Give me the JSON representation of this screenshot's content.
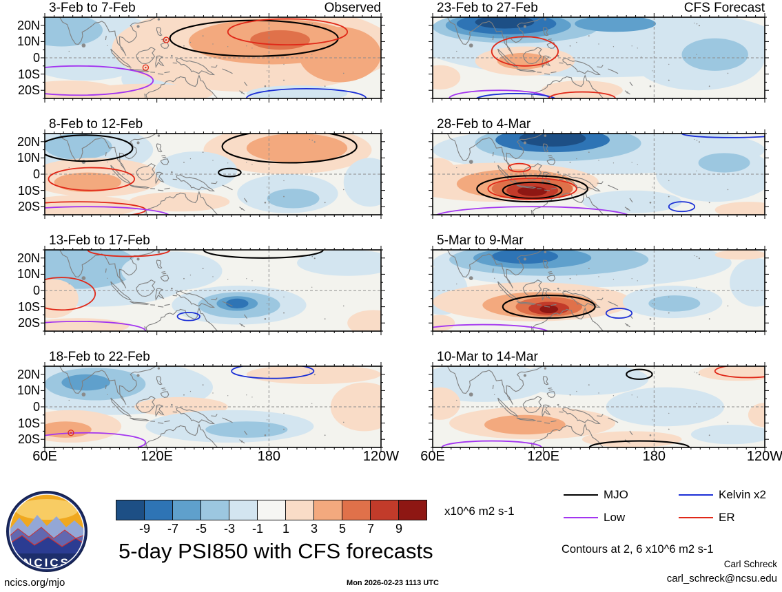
{
  "title": "5-day PSI850 with CFS forecasts",
  "logo": {
    "text": "NCICS"
  },
  "colorbar": {
    "units": "x10^6 m2 s-1"
  },
  "legend": {
    "items": [
      {
        "label": "MJO",
        "color": "#000000"
      },
      {
        "label": "Kelvin x2",
        "color": "#1b2fd6"
      },
      {
        "label": "Low",
        "color": "#a335f0"
      },
      {
        "label": "ER",
        "color": "#e02818"
      }
    ]
  },
  "notes": {
    "contours": "Contours at 2, 6 x10^6 m2 s-1",
    "credit_name": "Carl Schreck",
    "credit_email": "carl_schreck@ncsu.edu",
    "site": "ncics.org/mjo",
    "timestamp": "Mon 2026-02-23 1113 UTC"
  },
  "chart_data": {
    "type": "heatmap",
    "variable": "PSI850 anomaly (5-day mean streamfunction at 850 hPa)",
    "units": "x10^6 m2 s-1",
    "lon_range_deg_east": [
      60,
      240
    ],
    "lat_range_deg": [
      -25,
      25
    ],
    "x_ticks": [
      "60E",
      "120E",
      "180",
      "120W"
    ],
    "y_ticks": [
      "20N",
      "10N",
      "0",
      "10S",
      "20S"
    ],
    "levels": [
      -9,
      -7,
      -5,
      -3,
      -1,
      1,
      3,
      5,
      7,
      9
    ],
    "colors": [
      "#1d4f85",
      "#2e74b5",
      "#5fa0cc",
      "#9cc7e0",
      "#d3e5f0",
      "#f6f6f3",
      "#f9dcc7",
      "#f3a97e",
      "#e0714a",
      "#c23b2a",
      "#8e1713"
    ],
    "panel_bg": "#f3f3ee",
    "left_column_label": "Observed",
    "right_column_label": "CFS Forecast",
    "anomaly_format": "[lon_deg_east, lat_deg, lon_radius_deg, lat_radius_deg, anomaly_value_x10^6_m2s]",
    "contour_format": "[wave_type, lon_deg_east, lat_deg, lon_radius_deg, lat_radius_deg]",
    "panels": [
      {
        "title": "3-Feb to 7-Feb",
        "col": 0,
        "row": 0,
        "corner": "Observed",
        "anomalies": [
          [
            82,
            8,
            40,
            22,
            -2
          ],
          [
            69,
            17,
            22,
            10,
            -4
          ],
          [
            119,
            -13,
            18,
            10,
            -2
          ],
          [
            172,
            6,
            76,
            27,
            2
          ],
          [
            182,
            10,
            45,
            14,
            4
          ],
          [
            218,
            2,
            22,
            17,
            4
          ],
          [
            186,
            11,
            16,
            6,
            6
          ],
          [
            73,
            -21,
            27,
            7,
            2
          ],
          [
            114,
            -22,
            36,
            6,
            2
          ],
          [
            195,
            -22,
            27,
            5,
            -2
          ]
        ],
        "contours": [
          [
            "MJO",
            172,
            12,
            45,
            11
          ],
          [
            "ER",
            190,
            16,
            32,
            8
          ],
          [
            "Low",
            78,
            -14,
            40,
            9
          ],
          [
            "Kelvin",
            200,
            -25,
            32,
            6
          ]
        ],
        "markers": [
          [
            "ER",
            125,
            11
          ],
          [
            "ER",
            114,
            -6
          ]
        ]
      },
      {
        "title": "8-Feb to 12-Feb",
        "col": 0,
        "row": 1,
        "anomalies": [
          [
            82,
            15,
            36,
            15,
            -2
          ],
          [
            78,
            17,
            18,
            8,
            -4
          ],
          [
            87,
            -2,
            36,
            12,
            2
          ],
          [
            83,
            -5,
            18,
            6,
            4
          ],
          [
            190,
            15,
            45,
            15,
            2
          ],
          [
            195,
            16,
            27,
            9,
            4
          ],
          [
            190,
            -12,
            27,
            12,
            -2
          ],
          [
            193,
            -15,
            14,
            6,
            -4
          ],
          [
            234,
            -5,
            14,
            15,
            -2
          ],
          [
            78,
            -20,
            32,
            7,
            2
          ],
          [
            141,
            2,
            22,
            12,
            -2
          ],
          [
            132,
            -17,
            27,
            6,
            2
          ]
        ],
        "contours": [
          [
            "MJO",
            82,
            16,
            25,
            8
          ],
          [
            "MJO",
            191,
            17,
            36,
            10
          ],
          [
            "MJO",
            159,
            1,
            6,
            2.5
          ],
          [
            "ER",
            85,
            -3,
            23,
            7
          ],
          [
            "ER",
            78,
            -22,
            36,
            5
          ],
          [
            "Low",
            82,
            -26,
            45,
            6
          ]
        ],
        "markers": []
      },
      {
        "title": "13-Feb to 17-Feb",
        "col": 0,
        "row": 2,
        "anomalies": [
          [
            87,
            10,
            54,
            20,
            -2
          ],
          [
            78,
            15,
            32,
            14,
            -4
          ],
          [
            128,
            12,
            27,
            12,
            -2
          ],
          [
            164,
            -9,
            36,
            12,
            -2
          ],
          [
            164,
            -9,
            22,
            8,
            -4
          ],
          [
            163,
            -8,
            11,
            4.5,
            -6
          ],
          [
            163,
            -8,
            6,
            3,
            -8
          ],
          [
            64,
            -5,
            14,
            12,
            2
          ],
          [
            78,
            -22,
            27,
            5,
            2
          ],
          [
            222,
            17,
            27,
            8,
            -2
          ],
          [
            236,
            -20,
            14,
            8,
            2
          ]
        ],
        "contours": [
          [
            "MJO",
            177,
            25,
            32,
            5
          ],
          [
            "ER",
            69,
            -2,
            18,
            10
          ],
          [
            "ER",
            105,
            25,
            22,
            4
          ],
          [
            "Kelvin",
            137,
            -16,
            6,
            2.5
          ],
          [
            "Low",
            78,
            -25,
            36,
            6
          ]
        ],
        "markers": []
      },
      {
        "title": "18-Feb to 22-Feb",
        "col": 0,
        "row": 3,
        "anomalies": [
          [
            96,
            12,
            54,
            17,
            -2
          ],
          [
            87,
            14,
            27,
            10,
            -4
          ],
          [
            82,
            15,
            13,
            5,
            -6
          ],
          [
            74,
            -12,
            27,
            10,
            2
          ],
          [
            71,
            -14,
            14,
            5,
            4
          ],
          [
            133,
            0,
            25,
            6,
            2
          ],
          [
            159,
            -12,
            45,
            10,
            -2
          ],
          [
            168,
            -14,
            22,
            5,
            -4
          ],
          [
            204,
            20,
            36,
            6,
            2
          ],
          [
            231,
            0,
            18,
            15,
            2
          ]
        ],
        "contours": [
          [
            "Kelvin",
            182,
            22,
            22,
            4.5
          ],
          [
            "Low",
            82,
            -22,
            32,
            6
          ]
        ],
        "markers": [
          [
            "ER",
            74,
            -16
          ]
        ]
      },
      {
        "title": "23-Feb to 27-Feb",
        "col": 1,
        "row": 0,
        "corner": "CFS Forecast",
        "anomalies": [
          [
            150,
            10,
            99,
            22,
            -2
          ],
          [
            105,
            19,
            45,
            10,
            -4
          ],
          [
            101,
            20,
            34,
            8,
            -6
          ],
          [
            100,
            21,
            27,
            6.5,
            -8
          ],
          [
            99,
            22,
            16,
            4,
            -10
          ],
          [
            159,
            21,
            22,
            5,
            -6
          ],
          [
            204,
            0,
            36,
            20,
            -2
          ],
          [
            213,
            2,
            18,
            10,
            -4
          ],
          [
            110,
            -2,
            27,
            9,
            2
          ],
          [
            109,
            -2,
            14,
            5,
            4
          ],
          [
            141,
            -20,
            22,
            6,
            2
          ],
          [
            64,
            -12,
            11,
            7.5,
            2
          ]
        ],
        "contours": [
          [
            "ER",
            110,
            4,
            18,
            9
          ],
          [
            "Low",
            96,
            -25,
            27,
            5
          ],
          [
            "Kelvin",
            105,
            -26,
            22,
            4
          ],
          [
            "ER",
            141,
            -25,
            18,
            4
          ]
        ],
        "markers": []
      },
      {
        "title": "28-Feb to 4-Mar",
        "col": 1,
        "row": 1,
        "anomalies": [
          [
            150,
            15,
            90,
            15,
            -2
          ],
          [
            128,
            19,
            45,
            11,
            -4
          ],
          [
            125,
            21,
            31,
            7.5,
            -8
          ],
          [
            125,
            22,
            18,
            5,
            -10
          ],
          [
            213,
            0,
            32,
            17,
            -2
          ],
          [
            218,
            7,
            14,
            6,
            -4
          ],
          [
            96,
            -5,
            54,
            12,
            2
          ],
          [
            105,
            -6,
            32,
            9,
            4
          ],
          [
            114,
            -9,
            22,
            7,
            6
          ],
          [
            114,
            -10,
            14,
            5,
            8
          ],
          [
            114,
            -10.5,
            8,
            3,
            10
          ],
          [
            231,
            -22,
            18,
            5,
            2
          ],
          [
            168,
            -17,
            27,
            7,
            -2
          ],
          [
            63,
            0,
            10,
            10,
            2
          ]
        ],
        "contours": [
          [
            "MJO",
            114,
            -9,
            30,
            8
          ],
          [
            "MJO",
            114,
            -10,
            16,
            5
          ],
          [
            "ER",
            107,
            4,
            6,
            2.5
          ],
          [
            "ER",
            114,
            -9,
            24,
            6.5
          ],
          [
            "Low",
            114,
            -27,
            54,
            7
          ],
          [
            "Kelvin",
            222,
            25,
            27,
            2.5
          ],
          [
            "Kelvin",
            195,
            -20,
            7,
            3
          ]
        ],
        "markers": []
      },
      {
        "title": "5-Mar to 9-Mar",
        "col": 1,
        "row": 2,
        "anomalies": [
          [
            141,
            17,
            81,
            15,
            -2
          ],
          [
            123,
            19,
            54,
            10,
            -4
          ],
          [
            114,
            20,
            32,
            6.5,
            -6
          ],
          [
            110,
            21,
            18,
            4.5,
            -8
          ],
          [
            65,
            0,
            14,
            15,
            -2
          ],
          [
            114,
            -7,
            54,
            12,
            2
          ],
          [
            118,
            -9,
            31,
            8,
            4
          ],
          [
            123,
            -10,
            18,
            6,
            6
          ],
          [
            123,
            -11,
            11,
            4,
            8
          ],
          [
            123,
            -11.5,
            5,
            2.5,
            10
          ],
          [
            190,
            -7,
            27,
            10,
            -2
          ],
          [
            191,
            -8,
            14,
            5,
            -4
          ],
          [
            235,
            5,
            14,
            15,
            -2
          ],
          [
            227,
            22,
            14,
            3,
            2
          ],
          [
            64,
            -20,
            8,
            5,
            2
          ]
        ],
        "contours": [
          [
            "MJO",
            123,
            -10,
            25,
            7
          ],
          [
            "Kelvin",
            161,
            -14,
            7,
            3
          ],
          [
            "Low",
            87,
            -26,
            36,
            5
          ]
        ],
        "markers": []
      },
      {
        "title": "10-Mar to 14-Mar",
        "col": 1,
        "row": 3,
        "anomalies": [
          [
            87,
            15,
            36,
            12,
            -2
          ],
          [
            141,
            17,
            36,
            10,
            -2
          ],
          [
            186,
            0,
            32,
            12,
            -2
          ],
          [
            114,
            -10,
            45,
            10,
            2
          ],
          [
            110,
            -11,
            22,
            6,
            4
          ],
          [
            64,
            2,
            11,
            10,
            2
          ],
          [
            226,
            21,
            22,
            5,
            2
          ],
          [
            222,
            -17,
            22,
            6,
            -2
          ],
          [
            240,
            -5,
            9,
            7.5,
            2
          ],
          [
            168,
            -20,
            27,
            5,
            2
          ]
        ],
        "contours": [
          [
            "MJO",
            172,
            20,
            7,
            3
          ],
          [
            "ER",
            231,
            22,
            18,
            4
          ],
          [
            "Low",
            92,
            -25,
            27,
            4
          ],
          [
            "MJO",
            172,
            -25,
            27,
            4
          ]
        ],
        "markers": []
      }
    ]
  }
}
